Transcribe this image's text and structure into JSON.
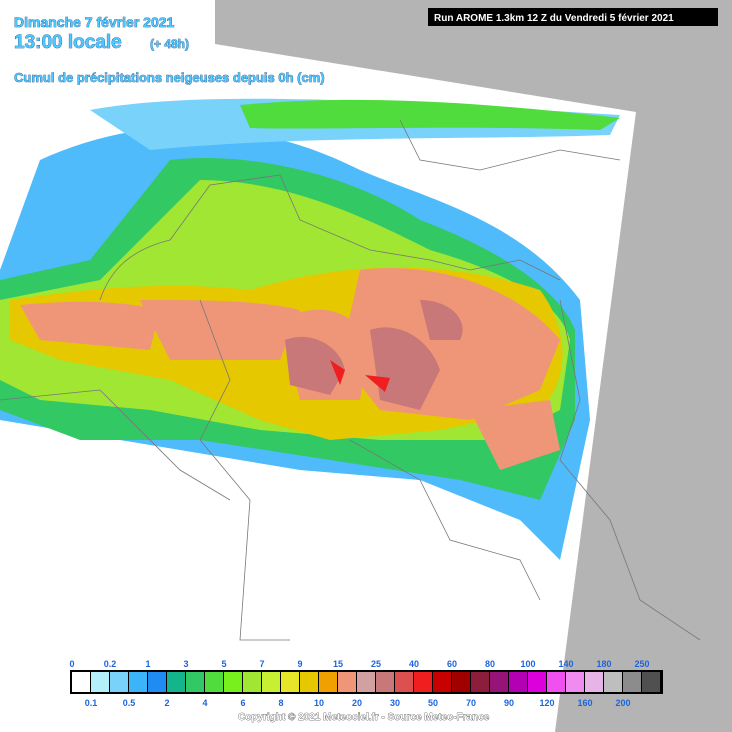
{
  "header": {
    "date": "Dimanche 7 février 2021",
    "time": "13:00 locale",
    "lead": "(+ 48h)",
    "title": "Cumul de précipitations neigeuses depuis 0h (cm)",
    "run": "Run AROME 1.3km 12 Z du Vendredi 5 février 2021"
  },
  "legend": {
    "items": [
      {
        "value": 0,
        "color": "#ffffff"
      },
      {
        "value": 0.1,
        "color": "#b4f0fa"
      },
      {
        "value": 0.2,
        "color": "#78d2fa"
      },
      {
        "value": 0.5,
        "color": "#3cb4fa"
      },
      {
        "value": 1,
        "color": "#1e8cf0"
      },
      {
        "value": 2,
        "color": "#14b48c"
      },
      {
        "value": 3,
        "color": "#32c864"
      },
      {
        "value": 4,
        "color": "#50dc3c"
      },
      {
        "value": 5,
        "color": "#78f01e"
      },
      {
        "value": 6,
        "color": "#a0e632"
      },
      {
        "value": 7,
        "color": "#c8f032"
      },
      {
        "value": 8,
        "color": "#e6e628"
      },
      {
        "value": 9,
        "color": "#e6c800"
      },
      {
        "value": 10,
        "color": "#f0a000"
      },
      {
        "value": 15,
        "color": "#f09678"
      },
      {
        "value": 20,
        "color": "#d2a0a0"
      },
      {
        "value": 25,
        "color": "#c87878"
      },
      {
        "value": 30,
        "color": "#dc5050"
      },
      {
        "value": 40,
        "color": "#f01e1e"
      },
      {
        "value": 50,
        "color": "#c80000"
      },
      {
        "value": 60,
        "color": "#a00000"
      },
      {
        "value": 70,
        "color": "#8c1e3c"
      },
      {
        "value": 80,
        "color": "#961478"
      },
      {
        "value": 90,
        "color": "#b400b4"
      },
      {
        "value": 100,
        "color": "#dc00dc"
      },
      {
        "value": 120,
        "color": "#f050f0"
      },
      {
        "value": 140,
        "color": "#f08cf0"
      },
      {
        "value": 160,
        "color": "#e6b4e6"
      },
      {
        "value": 180,
        "color": "#bebebe"
      },
      {
        "value": 200,
        "color": "#8c8c8c"
      },
      {
        "value": 250,
        "color": "#505050"
      }
    ]
  },
  "footer": {
    "copyright": "Copyright © 2021 Meteociel.fr - Source Meteo-France"
  }
}
